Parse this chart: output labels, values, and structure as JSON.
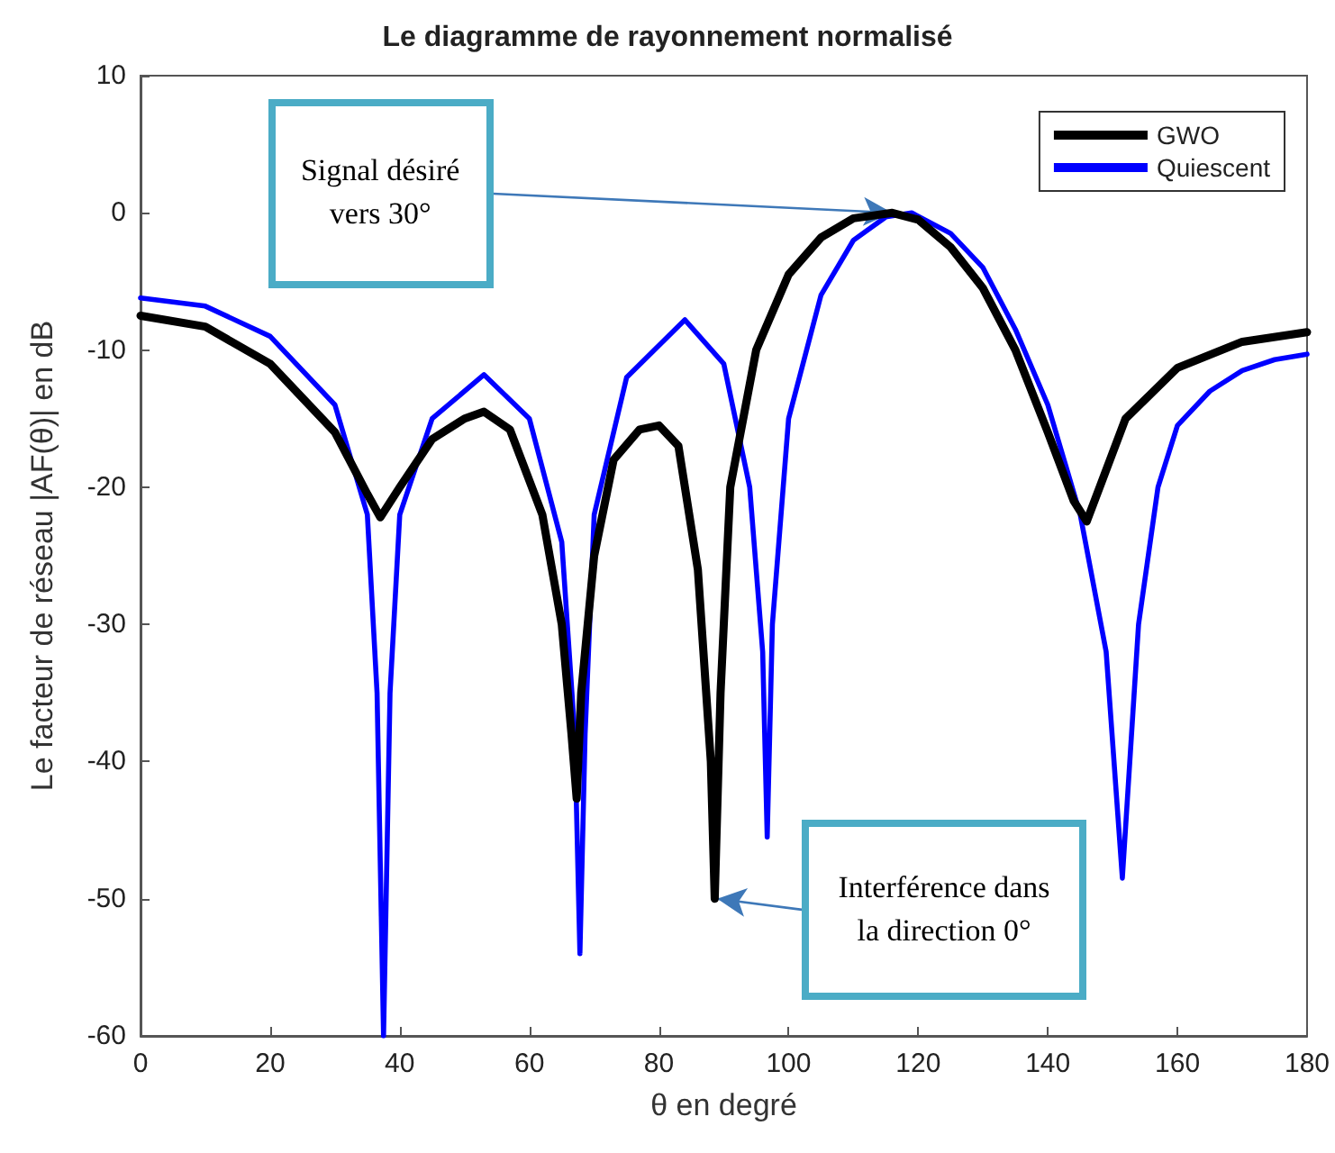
{
  "chart_data": {
    "type": "line",
    "title": "Le diagramme de rayonnement normalisé",
    "xlabel": "θ en degré",
    "ylabel": "Le facteur de réseau |AF(θ)| en dB",
    "xlim": [
      0,
      180
    ],
    "xticks": [
      0,
      20,
      40,
      60,
      80,
      100,
      120,
      140,
      160,
      180
    ],
    "ylim": [
      -60,
      10
    ],
    "yticks": [
      -60,
      -50,
      -40,
      -30,
      -20,
      -10,
      0,
      10
    ],
    "grid": false,
    "legend": "top right",
    "marker": "none",
    "line_style": "solid",
    "annotations": [
      {
        "text": "Signal désiré vers 30°",
        "x": 116,
        "y": 0
      },
      {
        "text": "Interférence dans la direction 0°",
        "x": 89,
        "y": -50
      }
    ],
    "series": [
      {
        "name": "GWO",
        "color": "#000000",
        "x": [
          0,
          10,
          20,
          30,
          35,
          37,
          40,
          45,
          50,
          53,
          57,
          62,
          65,
          66.5,
          67.3,
          68,
          70,
          73,
          77,
          80,
          83,
          86,
          88,
          88.6,
          89.5,
          91,
          95,
          100,
          105,
          110,
          116,
          120,
          125,
          130,
          135,
          140,
          144,
          146,
          148,
          152,
          160,
          170,
          180
        ],
        "values": [
          -7.5,
          -8.3,
          -11,
          -16,
          -20.5,
          -22.2,
          -20,
          -16.5,
          -15,
          -14.5,
          -15.8,
          -22,
          -30,
          -38,
          -42.7,
          -35,
          -25,
          -18,
          -15.8,
          -15.5,
          -17,
          -26,
          -40,
          -50,
          -35,
          -20,
          -10,
          -4.5,
          -1.8,
          -0.4,
          0,
          -0.5,
          -2.5,
          -5.5,
          -10,
          -16,
          -21,
          -22.5,
          -20,
          -15,
          -11.3,
          -9.4,
          -8.7
        ]
      },
      {
        "name": "Quiescent",
        "color": "#0000ff",
        "x": [
          0,
          10,
          20,
          30,
          35,
          36.5,
          37.5,
          38.5,
          40,
          45,
          53,
          60,
          65,
          67,
          67.8,
          68.6,
          70,
          75,
          84,
          90,
          94,
          96,
          96.7,
          97.5,
          100,
          105,
          110,
          115,
          119,
          125,
          130,
          135,
          140,
          145,
          149,
          151.5,
          154,
          157,
          160,
          165,
          170,
          175,
          180
        ],
        "values": [
          -6.2,
          -6.8,
          -9,
          -14,
          -22,
          -35,
          -60,
          -35,
          -22,
          -15,
          -11.8,
          -15,
          -24,
          -38,
          -54,
          -38,
          -22,
          -12,
          -7.8,
          -11,
          -20,
          -32,
          -45.5,
          -30,
          -15,
          -6,
          -2,
          -0.3,
          0,
          -1.5,
          -4,
          -8.5,
          -14,
          -22,
          -32,
          -48.5,
          -30,
          -20,
          -15.5,
          -13,
          -11.5,
          -10.7,
          -10.3
        ]
      }
    ]
  }
}
